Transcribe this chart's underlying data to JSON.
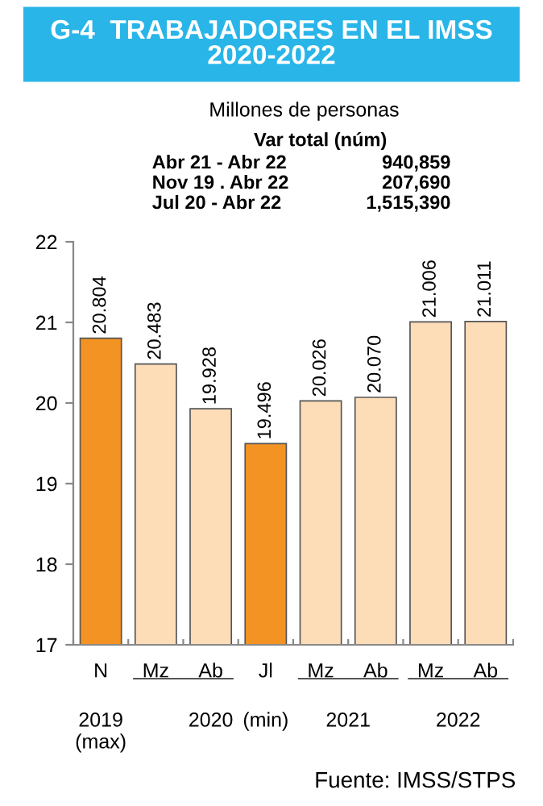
{
  "chart_data": {
    "type": "bar",
    "title": "G-4  TRABAJADORES EN EL IMSS\n2020-2022",
    "subtitle": "Millones de personas",
    "categories": [
      "N",
      "Mz",
      "Ab",
      "Jl",
      "Mz",
      "Ab",
      "Mz",
      "Ab"
    ],
    "values": [
      20.804,
      20.483,
      19.928,
      19.496,
      20.026,
      20.07,
      21.006,
      21.011
    ],
    "value_labels": [
      "20.804",
      "20.483",
      "19.928",
      "19.496",
      "20.026",
      "20.070",
      "21.006",
      "21.011"
    ],
    "colors": [
      "#f39323",
      "#fddcb8",
      "#fddcb8",
      "#f39323",
      "#fddcb8",
      "#fddcb8",
      "#fddcb8",
      "#fddcb8"
    ],
    "ylim": [
      17,
      22
    ],
    "yticks": [
      17,
      18,
      19,
      20,
      21,
      22
    ],
    "grid": false,
    "annotations": [
      "Var total (núm)",
      "Abr 21 - Abr 22",
      "940,859",
      "Nov 19 . Abr 22",
      "207,690",
      "Jul 20 - Abr 22",
      "1,515,390",
      "2019\n(max)",
      "2020",
      "(min)",
      "2021",
      "2022",
      "Fuente: IMSS/STPS"
    ]
  }
}
